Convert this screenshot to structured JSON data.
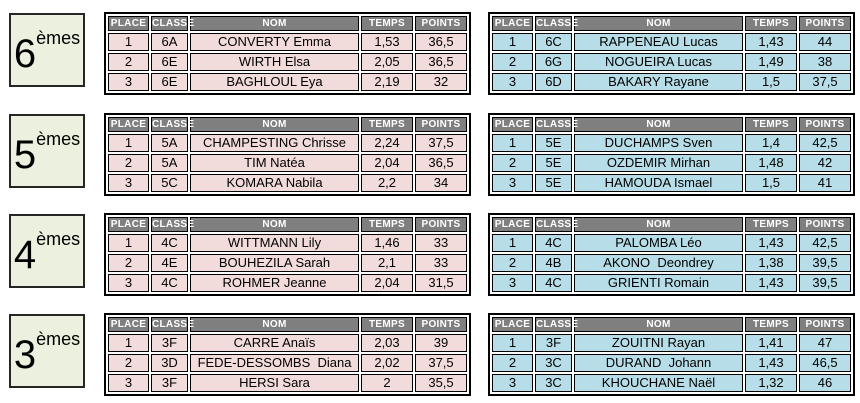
{
  "columns": [
    "PLACE",
    "CLASSE",
    "NOM",
    "TEMPS",
    "POINTS"
  ],
  "colors": {
    "header_bg": "#7f7f7f",
    "header_text": "#ffffff",
    "pink_row": "#f2dcdb",
    "blue_row": "#b7dee8",
    "label_box_bg": "#ebf1de",
    "border": "#000000"
  },
  "sections": [
    {
      "id": "6emes",
      "level_number": "6",
      "level_suffix": "èmes",
      "left": {
        "variant": "pink",
        "rows": [
          [
            "1",
            "6A",
            "CONVERTY Emma",
            "1,53",
            "36,5"
          ],
          [
            "2",
            "6E",
            "WIRTH Elsa",
            "2,05",
            "36,5"
          ],
          [
            "3",
            "6E",
            "BAGHLOUL Eya",
            "2,19",
            "32"
          ]
        ]
      },
      "right": {
        "variant": "blue",
        "rows": [
          [
            "1",
            "6C",
            "RAPPENEAU Lucas",
            "1,43",
            "44"
          ],
          [
            "2",
            "6G",
            "NOGUEIRA Lucas",
            "1,49",
            "38"
          ],
          [
            "3",
            "6D",
            "BAKARY Rayane",
            "1,5",
            "37,5"
          ]
        ]
      }
    },
    {
      "id": "5emes",
      "level_number": "5",
      "level_suffix": "èmes",
      "left": {
        "variant": "pink",
        "rows": [
          [
            "1",
            "5A",
            "CHAMPESTING Chrisse",
            "2,24",
            "37,5"
          ],
          [
            "2",
            "5A",
            "TIM Natéa",
            "2,04",
            "36,5"
          ],
          [
            "3",
            "5C",
            "KOMARA Nabila",
            "2,2",
            "34"
          ]
        ]
      },
      "right": {
        "variant": "blue",
        "rows": [
          [
            "1",
            "5E",
            "DUCHAMPS Sven",
            "1,4",
            "42,5"
          ],
          [
            "2",
            "5E",
            "OZDEMIR Mirhan",
            "1,48",
            "42"
          ],
          [
            "3",
            "5E",
            "HAMOUDA Ismael",
            "1,5",
            "41"
          ]
        ]
      }
    },
    {
      "id": "4emes",
      "level_number": "4",
      "level_suffix": "èmes",
      "left": {
        "variant": "pink",
        "rows": [
          [
            "1",
            "4C",
            "WITTMANN Lily",
            "1,46",
            "33"
          ],
          [
            "2",
            "4E",
            "BOUHEZILA Sarah",
            "2,1",
            "33"
          ],
          [
            "3",
            "4C",
            "ROHMER Jeanne",
            "2,04",
            "31,5"
          ]
        ]
      },
      "right": {
        "variant": "blue",
        "rows": [
          [
            "1",
            "4C",
            "PALOMBA Léo",
            "1,43",
            "42,5"
          ],
          [
            "2",
            "4B",
            "AKONO  Deondrey",
            "1,38",
            "39,5"
          ],
          [
            "3",
            "4C",
            "GRIENTI Romain",
            "1,43",
            "39,5"
          ]
        ]
      }
    },
    {
      "id": "3emes",
      "level_number": "3",
      "level_suffix": "èmes",
      "left": {
        "variant": "pink",
        "rows": [
          [
            "1",
            "3F",
            "CARRE Anaïs",
            "2,03",
            "39"
          ],
          [
            "2",
            "3D",
            "FEDE-DESSOMBS  Diana",
            "2,02",
            "37,5"
          ],
          [
            "3",
            "3F",
            "HERSI Sara",
            "2",
            "35,5"
          ]
        ]
      },
      "right": {
        "variant": "blue",
        "rows": [
          [
            "1",
            "3F",
            "ZOUITNI Rayan",
            "1,41",
            "47"
          ],
          [
            "2",
            "3C",
            "DURAND  Johann",
            "1,43",
            "46,5"
          ],
          [
            "3",
            "3C",
            "KHOUCHANE Naël",
            "1,32",
            "46"
          ]
        ]
      }
    }
  ]
}
